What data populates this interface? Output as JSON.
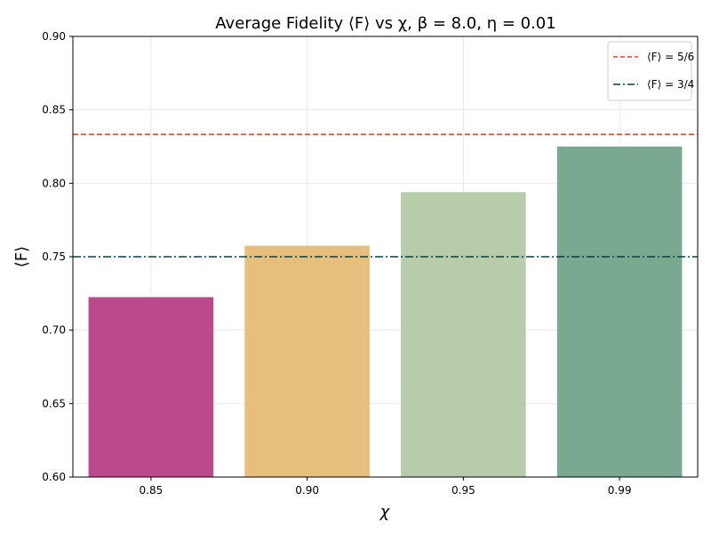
{
  "chart_data": {
    "type": "bar",
    "title": "Average Fidelity ⟨F⟩ vs χ, β = 8.0, η = 0.01",
    "xlabel": "χ",
    "ylabel": "⟨F⟩",
    "categories": [
      "0.85",
      "0.90",
      "0.95",
      "0.99"
    ],
    "values": [
      0.7225,
      0.7575,
      0.794,
      0.825
    ],
    "bar_colors": [
      "#b4367f",
      "#e3b86e",
      "#b0c7a1",
      "#6aa184"
    ],
    "ylim": [
      0.6,
      0.9
    ],
    "yticks": [
      "0.60",
      "0.65",
      "0.70",
      "0.75",
      "0.80",
      "0.85",
      "0.90"
    ],
    "grid": true,
    "legend_position": "top-right",
    "reference_lines": [
      {
        "label": "⟨F⟩ = 5/6",
        "value": 0.8333,
        "color": "#d2492a",
        "style": "dashed"
      },
      {
        "label": "⟨F⟩ = 3/4",
        "value": 0.75,
        "color": "#0b3d3a",
        "style": "dashdot"
      }
    ]
  }
}
